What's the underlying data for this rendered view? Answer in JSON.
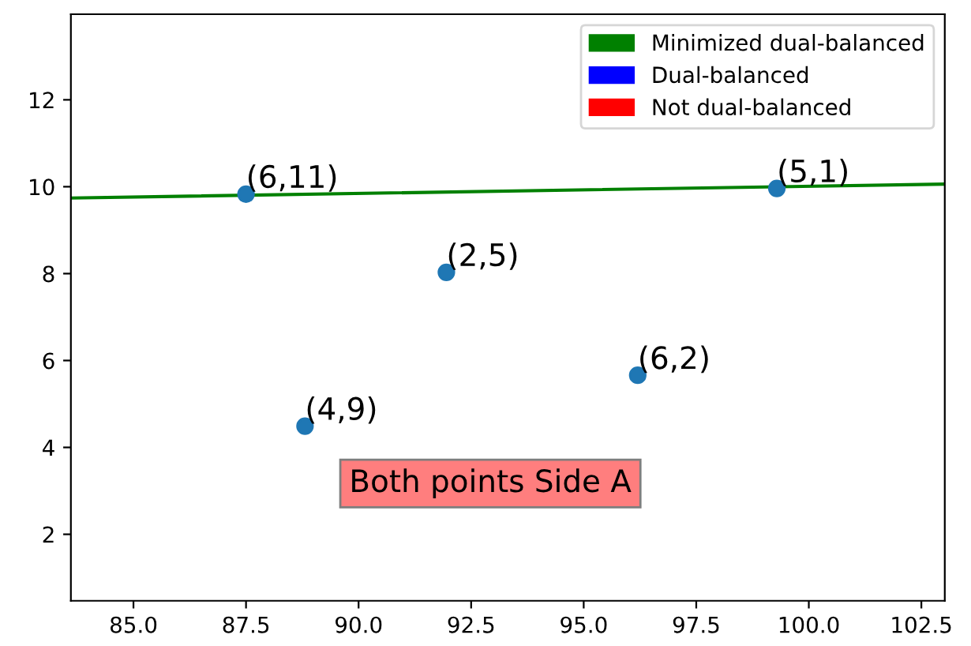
{
  "chart_data": {
    "type": "scatter",
    "series": [
      {
        "type": "line",
        "name": "Minimized dual-balanced",
        "color": "#008000",
        "marker": "none",
        "x": [
          83.61,
          103.02
        ],
        "values": [
          9.74,
          10.06
        ]
      },
      {
        "type": "line",
        "name": "Dual-balanced",
        "color": "#0000ff"
      },
      {
        "type": "line",
        "name": "Not dual-balanced",
        "color": "#ff0000"
      },
      {
        "color": "#1f77b4",
        "x": [
          87.5,
          91.95,
          88.81,
          96.2,
          99.29
        ],
        "values": [
          9.83,
          8.03,
          4.49,
          5.66,
          9.96
        ]
      }
    ],
    "annotations": [
      {
        "text": "(6,11)",
        "x": 87.5,
        "y": 9.83
      },
      {
        "text": "(2,5)",
        "x": 91.95,
        "y": 8.03
      },
      {
        "text": "(4,9)",
        "x": 88.81,
        "y": 4.49
      },
      {
        "text": "(6,2)",
        "x": 96.2,
        "y": 5.66
      },
      {
        "text": "(5,1)",
        "x": 99.29,
        "y": 9.96
      },
      "Both points Side A"
    ],
    "xlim": [
      83.61,
      103.02
    ],
    "ylim": [
      0.47,
      13.97
    ],
    "xticks": [
      {
        "value": 85,
        "label": "85.0"
      },
      {
        "value": 87.5,
        "label": "87.5"
      },
      {
        "value": 90,
        "label": "90.0"
      },
      {
        "value": 92.5,
        "label": "92.5"
      },
      {
        "value": 95,
        "label": "95.0"
      },
      {
        "value": 97.5,
        "label": "97.5"
      },
      {
        "value": 100,
        "label": "100.0"
      },
      {
        "value": 102.5,
        "label": "102.5"
      }
    ],
    "yticks": [
      2,
      4,
      6,
      8,
      10,
      12
    ],
    "legend": "top right",
    "marker": "circle",
    "grid": false
  }
}
